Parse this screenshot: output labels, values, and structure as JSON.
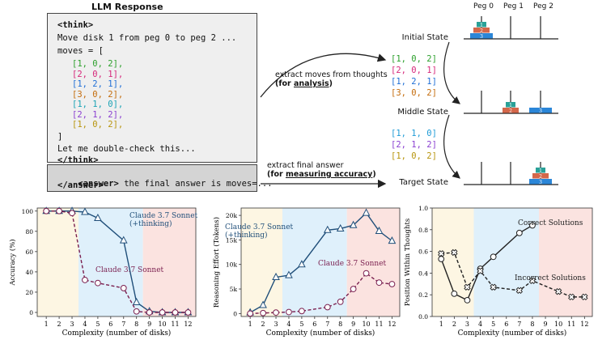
{
  "top": {
    "llm_title": "LLM Response",
    "code": {
      "think_open": "<think>",
      "line1": "Move disk 1 from peg 0 to peg 2 ...",
      "moves_decl": "moves = [",
      "moves": [
        {
          "text": "[1, 0, 2],",
          "color": "#2ca02c"
        },
        {
          "text": "[2, 0, 1],",
          "color": "#d6277a"
        },
        {
          "text": "[1, 2, 1],",
          "color": "#1f6fd6"
        },
        {
          "text": "[3, 0, 2],",
          "color": "#c46c0c"
        },
        {
          "text": "[1, 1, 0],",
          "color": "#1aa3b5"
        },
        {
          "text": "[2, 1, 2],",
          "color": "#8a3fd1"
        },
        {
          "text": "[1, 0, 2],",
          "color": "#b8950e"
        }
      ],
      "close_bracket": "]",
      "double_check": "Let me double-check this...",
      "think_close": "</think>"
    },
    "answer": {
      "open": "<answer>",
      "text": " the final answer is moves=...",
      "close": "</answer>"
    },
    "arrow1": {
      "line1": "extract moves  from thoughts",
      "line2_pre": "(for ",
      "line2_u": "analysis",
      "line2_post": ")"
    },
    "arrow2": {
      "line1": "extract final answer",
      "line2_pre": "(for ",
      "line2_u": "measuring accuracy",
      "line2_post": ")"
    },
    "states": {
      "initial": "Initial State",
      "middle": "Middle State",
      "target": "Target State"
    },
    "pegs": [
      "Peg 0",
      "Peg 1",
      "Peg 2"
    ],
    "disk_labels": [
      "1",
      "2",
      "3"
    ],
    "disk_colors": {
      "d1": "#2aa198",
      "d2": "#d4674a",
      "d3": "#2b86d8"
    },
    "moves_a": [
      {
        "text": "[1, 0, 2]",
        "color": "#2ca02c"
      },
      {
        "text": "[2, 0, 1]",
        "color": "#d6277a"
      },
      {
        "text": "[1, 2, 1]",
        "color": "#1f6fd6"
      },
      {
        "text": "[3, 0, 2]",
        "color": "#c46c0c"
      }
    ],
    "moves_b": [
      {
        "text": "[1, 1, 0]",
        "color": "#1f9bd6"
      },
      {
        "text": "[2, 1, 2]",
        "color": "#8a3fd1"
      },
      {
        "text": "[1, 0, 2]",
        "color": "#b8950e"
      }
    ]
  },
  "chart_data": [
    {
      "type": "line",
      "xlabel": "Complexity (number of disks)",
      "ylabel": "Accuracy (%)",
      "xlim": [
        0.3,
        12.6
      ],
      "ylim": [
        -4,
        103
      ],
      "xticks": [
        1,
        2,
        3,
        4,
        5,
        6,
        7,
        8,
        9,
        10,
        11,
        12
      ],
      "yticks": [
        0,
        20,
        40,
        60,
        80,
        100
      ],
      "yticklabels": [
        "0",
        "20",
        "40",
        "60",
        "80",
        "100"
      ],
      "regions": [
        {
          "from": 0.3,
          "to": 3.5,
          "color": "#fdf6e3"
        },
        {
          "from": 3.5,
          "to": 8.5,
          "color": "#dff0fb"
        },
        {
          "from": 8.5,
          "to": 12.6,
          "color": "#fbe3e0"
        }
      ],
      "series": [
        {
          "name": "Claude 3.7 Sonnet (+thinking)",
          "label_lines": [
            "Claude 3.7 Sonnet",
            "(+thinking)"
          ],
          "color": "#1f4e79",
          "marker": "triangle",
          "dashed": false,
          "x": [
            1,
            2,
            3,
            4,
            5,
            7,
            8,
            9,
            10,
            11,
            12
          ],
          "y": [
            100,
            100,
            100,
            99,
            93,
            71,
            10,
            1,
            0,
            0,
            0
          ]
        },
        {
          "name": "Claude 3.7 Sonnet",
          "label_lines": [
            "Claude 3.7 Sonnet"
          ],
          "color": "#7a1f4f",
          "marker": "circle",
          "dashed": true,
          "x": [
            1,
            2,
            3,
            4,
            5,
            7,
            8,
            9,
            10,
            11,
            12
          ],
          "y": [
            100,
            100,
            98,
            32,
            29,
            24,
            1,
            0,
            0,
            0,
            0
          ]
        }
      ]
    },
    {
      "type": "line",
      "xlabel": "Complexity (number of disks)",
      "ylabel": "Reasoning Effort (Tokens)",
      "xlim": [
        0.3,
        12.6
      ],
      "ylim": [
        -600,
        21500
      ],
      "xticks": [
        1,
        2,
        3,
        4,
        5,
        6,
        7,
        8,
        9,
        10,
        11,
        12
      ],
      "yticks": [
        0,
        5000,
        10000,
        15000,
        20000
      ],
      "yticklabels": [
        "0",
        "5k",
        "10k",
        "15k",
        "20k"
      ],
      "regions": [
        {
          "from": 0.3,
          "to": 3.5,
          "color": "#fdf6e3"
        },
        {
          "from": 3.5,
          "to": 8.5,
          "color": "#dff0fb"
        },
        {
          "from": 8.5,
          "to": 12.6,
          "color": "#fbe3e0"
        }
      ],
      "series": [
        {
          "name": "Claude 3.7 Sonnet (+thinking)",
          "label_lines": [
            "Claude 3.7 Sonnet",
            "(+thinking)"
          ],
          "color": "#1f4e79",
          "marker": "triangle",
          "dashed": false,
          "x": [
            1,
            2,
            3,
            4,
            5,
            7,
            8,
            9,
            10,
            11,
            12
          ],
          "y": [
            200,
            1700,
            7400,
            7800,
            10000,
            17000,
            17300,
            18000,
            20500,
            16800,
            14800
          ]
        },
        {
          "name": "Claude 3.7 Sonnet",
          "label_lines": [
            "Claude 3.7 Sonnet"
          ],
          "color": "#7a1f4f",
          "marker": "circle",
          "dashed": true,
          "x": [
            1,
            2,
            3,
            4,
            5,
            7,
            8,
            9,
            10,
            11,
            12
          ],
          "y": [
            0,
            100,
            200,
            300,
            500,
            1300,
            2400,
            5000,
            8200,
            6300,
            6000
          ]
        }
      ]
    },
    {
      "type": "line",
      "xlabel": "Complexity (number of disks)",
      "ylabel": "Position Within Thoughts",
      "xlim": [
        0.3,
        12.6
      ],
      "ylim": [
        0,
        1.0
      ],
      "xticks": [
        1,
        2,
        3,
        4,
        5,
        6,
        7,
        8,
        9,
        10,
        11,
        12
      ],
      "yticks": [
        0,
        0.2,
        0.4,
        0.6,
        0.8,
        1.0
      ],
      "yticklabels": [
        "0.0",
        "0.2",
        "0.4",
        "0.6",
        "0.8",
        "1.0"
      ],
      "regions": [
        {
          "from": 0.3,
          "to": 3.5,
          "color": "#fdf6e3"
        },
        {
          "from": 3.5,
          "to": 8.5,
          "color": "#dff0fb"
        },
        {
          "from": 8.5,
          "to": 12.6,
          "color": "#fbe3e0"
        }
      ],
      "series": [
        {
          "name": "Correct Solutions",
          "label_lines": [
            "Correct Solutions"
          ],
          "color": "#222222",
          "marker": "circle",
          "dashed": false,
          "x": [
            1,
            2,
            3,
            4,
            5,
            7,
            8
          ],
          "y": [
            0.53,
            0.21,
            0.15,
            0.44,
            0.55,
            0.77,
            0.84
          ]
        },
        {
          "name": "Incorrect Solutions",
          "label_lines": [
            "Incorrect Solutions"
          ],
          "color": "#222222",
          "marker": "cross",
          "dashed": true,
          "x": [
            1,
            2,
            3,
            4,
            5,
            7,
            8,
            10,
            11,
            12
          ],
          "y": [
            0.58,
            0.59,
            0.27,
            0.42,
            0.27,
            0.24,
            0.33,
            0.23,
            0.18,
            0.18
          ]
        }
      ]
    }
  ]
}
